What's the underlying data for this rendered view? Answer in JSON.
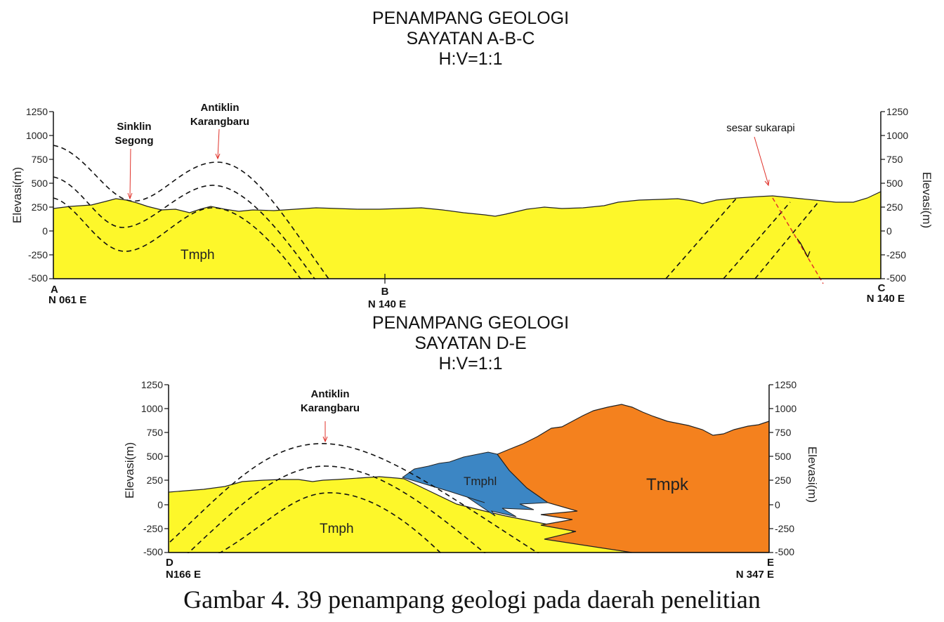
{
  "section1": {
    "title_line1": "PENAMPANG GEOLOGI",
    "title_line2": "SAYATAN A-B-C",
    "title_line3": "H:V=1:1",
    "y_axis_label_left": "Elevasi(m)",
    "y_axis_label_right": "Elevasi(m)",
    "y_ticks": [
      "1250",
      "1000",
      "750",
      "500",
      "250",
      "0",
      "-250",
      "-500"
    ],
    "points": [
      {
        "letter": "A",
        "bearing": "N 061 E"
      },
      {
        "letter": "B",
        "bearing": "N 140 E"
      },
      {
        "letter": "C",
        "bearing": "N 140 E"
      }
    ],
    "structures": {
      "sinklin_line1": "Sinklin",
      "sinklin_line2": "Segong",
      "antiklin_line1": "Antiklin",
      "antiklin_line2": "Karangbaru",
      "fault": "sesar sukarapi"
    },
    "unit_label": "Tmph"
  },
  "section2": {
    "title_line1": "PENAMPANG GEOLOGI",
    "title_line2": "SAYATAN D-E",
    "title_line3": "H:V=1:1",
    "y_axis_label_left": "Elevasi(m)",
    "y_axis_label_right": "Elevasi(m)",
    "y_ticks": [
      "1250",
      "1000",
      "750",
      "500",
      "250",
      "0",
      "-250",
      "-500"
    ],
    "points": [
      {
        "letter": "D",
        "bearing": "N166 E"
      },
      {
        "letter": "E",
        "bearing": "N 347 E"
      }
    ],
    "structures": {
      "antiklin_line1": "Antiklin",
      "antiklin_line2": "Karangbaru"
    },
    "unit_labels": {
      "tmph": "Tmph",
      "tmphl": "Tmphl",
      "tmpk": "Tmpk"
    }
  },
  "colors": {
    "tmph": "#fdf72a",
    "tmphl": "#3c86c4",
    "tmpk": "#f4811e",
    "annotation_arrow": "#e0322a"
  },
  "caption": "Gambar 4. 39 penampang geologi pada daerah penelitian"
}
